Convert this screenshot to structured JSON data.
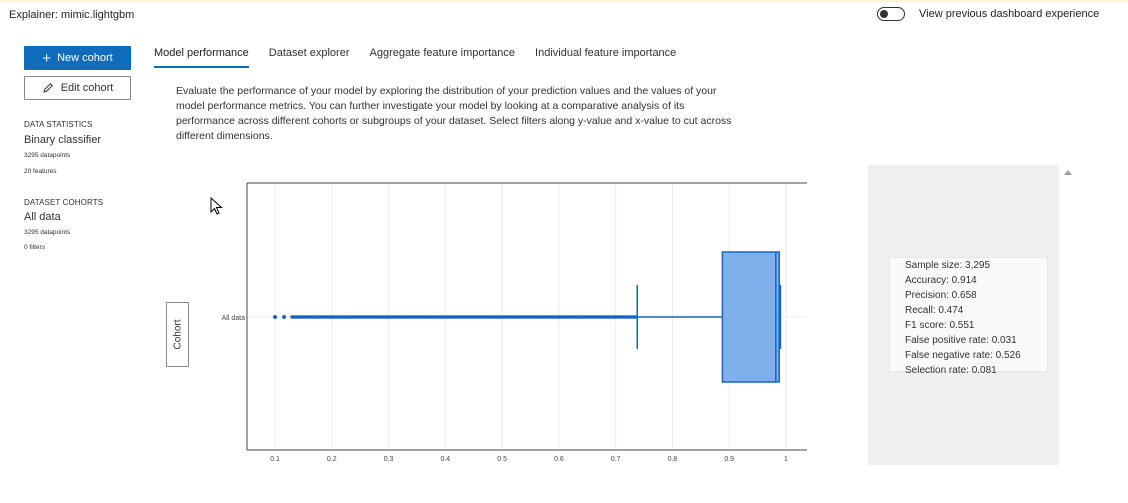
{
  "header": {
    "explainer_text": "Explainer: mimic.lightgbm",
    "toggle_label": "View previous dashboard experience"
  },
  "sidebar": {
    "new_cohort_label": "New cohort",
    "edit_cohort_label": "Edit cohort",
    "data_statistics": {
      "heading": "DATA STATISTICS",
      "model_type": "Binary classifier",
      "datapoints": "3295 datapoints",
      "features": "20 features"
    },
    "dataset_cohorts": {
      "heading": "DATASET COHORTS",
      "name": "All data",
      "datapoints": "3295 datapoints",
      "filters": "0 filters"
    }
  },
  "tabs": [
    {
      "label": "Model performance",
      "active": true
    },
    {
      "label": "Dataset explorer",
      "active": false
    },
    {
      "label": "Aggregate feature importance",
      "active": false
    },
    {
      "label": "Individual feature importance",
      "active": false
    }
  ],
  "description": "Evaluate the performance of your model by exploring the distribution of your prediction values and the values of your model performance metrics. You can further investigate your model by looking at a comparative analysis of its performance across different cohorts or subgroups of your dataset. Select filters along y-value and x-value to cut across different dimensions.",
  "cohort_axis_button": "Cohort",
  "metrics": [
    "Sample size: 3,295",
    "Accuracy: 0.914",
    "Precision: 0.658",
    "Recall: 0.474",
    "F1 score: 0.551",
    "False positive rate: 0.031",
    "False negative rate: 0.526",
    "Selection rate: 0.081"
  ],
  "colors": {
    "accent": "#0f6cbd",
    "box_fill": "#7fb0eb",
    "box_stroke": "#1565c0"
  },
  "chart_data": {
    "type": "box",
    "orientation": "horizontal",
    "categories": [
      "All data"
    ],
    "xlim": [
      0.05,
      1.04
    ],
    "xticks": [
      0.1,
      0.2,
      0.3,
      0.4,
      0.5,
      0.6,
      0.7,
      0.8,
      0.9,
      1
    ],
    "xtick_labels": [
      "0.1",
      "0.2",
      "0.3",
      "0.4",
      "0.5",
      "0.6",
      "0.7",
      "0.8",
      "0.9",
      "1"
    ],
    "box": {
      "q1": 0.888,
      "median": 0.982,
      "q3": 0.988,
      "lower_whisker": 0.738,
      "upper_whisker": 0.988
    },
    "outliers_dense_range": [
      0.13,
      0.737
    ],
    "outliers_isolated": [
      0.1,
      0.116
    ],
    "grid": true
  }
}
